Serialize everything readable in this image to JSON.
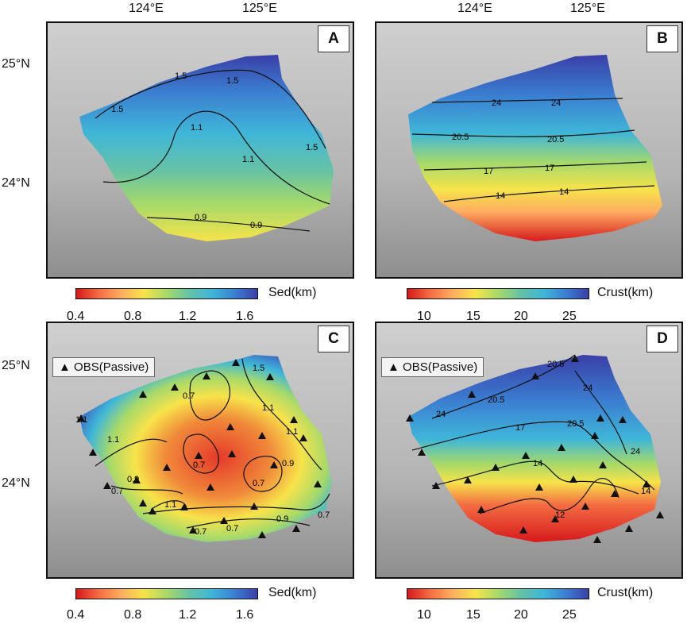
{
  "axes": {
    "lon_labels": [
      "124°E",
      "125°E"
    ],
    "lat_labels": [
      "25°N",
      "24°N"
    ]
  },
  "panels": [
    {
      "letter": "A",
      "colorbar_label": "Sed(km)",
      "colorbar_ticks": [
        "0.4",
        "0.8",
        "1.2",
        "1.6"
      ],
      "contours": [
        "1.5",
        "1.5",
        "1.5",
        "1.5",
        "1.1",
        "1.1",
        "0.9",
        "0.9"
      ],
      "legend": ""
    },
    {
      "letter": "B",
      "colorbar_label": "Crust(km)",
      "colorbar_ticks": [
        "10",
        "15",
        "20",
        "25"
      ],
      "contours": [
        "24",
        "24",
        "20.5",
        "20.5",
        "17",
        "17",
        "14",
        "14"
      ],
      "legend": ""
    },
    {
      "letter": "C",
      "colorbar_label": "Sed(km)",
      "colorbar_ticks": [
        "0.4",
        "0.8",
        "1.2",
        "1.6"
      ],
      "contours": [
        "1.5",
        "0.7",
        "1.1",
        "1.1",
        "1.1",
        "1.1",
        "0.7",
        "0.7",
        "0.9",
        "1.1",
        "0.7",
        "0.9",
        "0.7",
        "0.7",
        "0.9",
        "0.7"
      ],
      "legend": "OBS(Passive)"
    },
    {
      "letter": "D",
      "colorbar_label": "Crust(km)",
      "colorbar_ticks": [
        "10",
        "15",
        "20",
        "25"
      ],
      "contours": [
        "20.5",
        "24",
        "24",
        "20.5",
        "20.5",
        "17",
        "24",
        "14",
        "14",
        "12"
      ],
      "legend": "OBS(Passive)"
    }
  ],
  "colors": {
    "palette": [
      "#d7191c",
      "#f46d43",
      "#fdae61",
      "#f7e34a",
      "#a6d96a",
      "#66c2a5",
      "#3fb6d8",
      "#3b7fd1",
      "#3a3fa8"
    ],
    "background_relief": "#bdbdbd",
    "contour": "#111111",
    "obs_marker": "#111111"
  },
  "symbols": {
    "obs_marker": "black-triangle"
  }
}
